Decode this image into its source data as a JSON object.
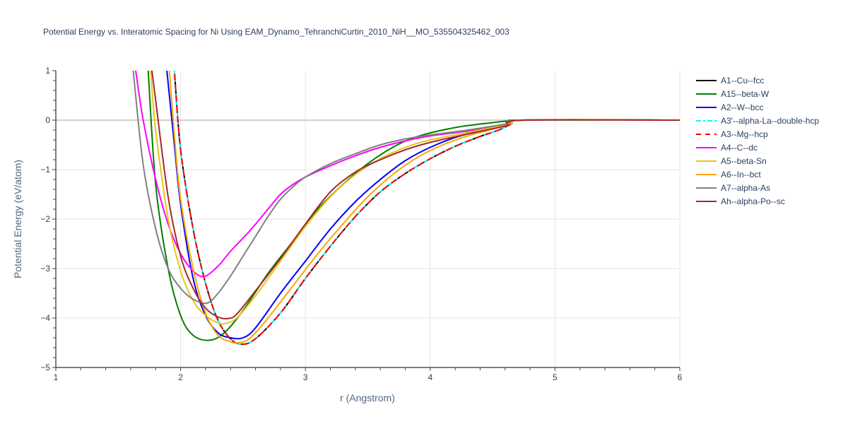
{
  "title": "Potential Energy vs. Interatomic Spacing for Ni Using EAM_Dynamo_TehranchiCurtin_2010_NiH__MO_535504325462_003",
  "chart_data": {
    "type": "line",
    "title": "Potential Energy vs. Interatomic Spacing for Ni Using EAM_Dynamo_TehranchiCurtin_2010_NiH__MO_535504325462_003",
    "xlabel": "r (Angstrom)",
    "ylabel": "Potential Energy (eV/atom)",
    "xlim": [
      1,
      6
    ],
    "ylim": [
      -5,
      1
    ],
    "x_ticks": [
      "1",
      "2",
      "3",
      "4",
      "5",
      "6"
    ],
    "y_ticks": [
      "1",
      "0",
      "−1",
      "−2",
      "−3",
      "−4",
      "−5"
    ],
    "grid": true,
    "legend_position": "right",
    "series": [
      {
        "name": "A1--Cu--fcc",
        "color": "#000000",
        "dash": "solid",
        "x": [
          1.95,
          2.0,
          2.1,
          2.2,
          2.3,
          2.4,
          2.49,
          2.6,
          2.8,
          3.0,
          3.2,
          3.4,
          3.6,
          3.8,
          4.0,
          4.2,
          4.4,
          4.55,
          4.65,
          4.75,
          6.0
        ],
        "y": [
          1.0,
          -0.6,
          -2.2,
          -3.3,
          -4.05,
          -4.42,
          -4.53,
          -4.42,
          -3.9,
          -3.2,
          -2.55,
          -1.95,
          -1.45,
          -1.08,
          -0.78,
          -0.53,
          -0.33,
          -0.2,
          -0.08,
          0.0,
          0.0
        ]
      },
      {
        "name": "A15--beta-W",
        "color": "#008000",
        "dash": "solid",
        "x": [
          1.74,
          1.8,
          1.9,
          2.0,
          2.1,
          2.23,
          2.35,
          2.5,
          2.7,
          2.9,
          3.1,
          3.3,
          3.5,
          3.7,
          3.9,
          4.2,
          4.5,
          4.65,
          4.75,
          6.0
        ],
        "y": [
          1.0,
          -1.3,
          -3.0,
          -3.95,
          -4.35,
          -4.45,
          -4.3,
          -3.85,
          -3.1,
          -2.45,
          -1.8,
          -1.3,
          -0.88,
          -0.55,
          -0.33,
          -0.15,
          -0.05,
          -0.01,
          0.0,
          0.0
        ]
      },
      {
        "name": "A2--W--bcc",
        "color": "#0000ff",
        "dash": "solid",
        "x": [
          1.89,
          1.95,
          2.0,
          2.1,
          2.2,
          2.3,
          2.4,
          2.5,
          2.6,
          2.8,
          3.0,
          3.2,
          3.4,
          3.6,
          3.8,
          4.0,
          4.2,
          4.4,
          4.6,
          4.75,
          6.0
        ],
        "y": [
          1.0,
          -0.5,
          -1.7,
          -3.2,
          -3.95,
          -4.3,
          -4.4,
          -4.4,
          -4.2,
          -3.5,
          -2.85,
          -2.2,
          -1.65,
          -1.2,
          -0.82,
          -0.55,
          -0.35,
          -0.22,
          -0.1,
          0.0,
          0.0
        ]
      },
      {
        "name": "A3'--alpha-La--double-hcp",
        "color": "#00ffff",
        "dash": "dashdot",
        "x": [
          1.95,
          2.0,
          2.1,
          2.2,
          2.3,
          2.4,
          2.49,
          2.6,
          2.8,
          3.0,
          3.2,
          3.4,
          3.6,
          3.8,
          4.0,
          4.2,
          4.4,
          4.55,
          4.65,
          4.75,
          6.0
        ],
        "y": [
          1.0,
          -0.6,
          -2.2,
          -3.3,
          -4.05,
          -4.42,
          -4.53,
          -4.42,
          -3.9,
          -3.2,
          -2.55,
          -1.95,
          -1.45,
          -1.08,
          -0.78,
          -0.53,
          -0.33,
          -0.2,
          -0.08,
          0.0,
          0.0
        ]
      },
      {
        "name": "A3--Mg--hcp",
        "color": "#ff0000",
        "dash": "dash",
        "x": [
          1.95,
          2.0,
          2.1,
          2.2,
          2.3,
          2.4,
          2.49,
          2.6,
          2.8,
          3.0,
          3.2,
          3.4,
          3.6,
          3.8,
          4.0,
          4.2,
          4.4,
          4.55,
          4.65,
          4.75,
          6.0
        ],
        "y": [
          1.0,
          -0.6,
          -2.2,
          -3.3,
          -4.05,
          -4.42,
          -4.53,
          -4.42,
          -3.9,
          -3.2,
          -2.55,
          -1.95,
          -1.45,
          -1.08,
          -0.78,
          -0.53,
          -0.33,
          -0.2,
          -0.08,
          0.0,
          0.0
        ]
      },
      {
        "name": "A4--C--dc",
        "color": "#ff00ff",
        "dash": "solid",
        "x": [
          1.64,
          1.7,
          1.8,
          1.9,
          2.0,
          2.1,
          2.19,
          2.3,
          2.4,
          2.55,
          2.7,
          2.8,
          2.9,
          3.0,
          3.2,
          3.4,
          3.6,
          3.8,
          4.0,
          4.3,
          4.6,
          4.75,
          6.0
        ],
        "y": [
          1.0,
          0.0,
          -1.2,
          -2.1,
          -2.7,
          -3.05,
          -3.16,
          -2.95,
          -2.65,
          -2.25,
          -1.8,
          -1.5,
          -1.3,
          -1.15,
          -0.92,
          -0.72,
          -0.55,
          -0.42,
          -0.32,
          -0.22,
          -0.1,
          0.0,
          0.0
        ]
      },
      {
        "name": "A5--beta-Sn",
        "color": "#e6c619",
        "dash": "solid",
        "x": [
          1.76,
          1.8,
          1.9,
          2.0,
          2.1,
          2.2,
          2.3,
          2.36,
          2.45,
          2.6,
          2.8,
          3.0,
          3.2,
          3.4,
          3.6,
          3.8,
          4.0,
          4.3,
          4.6,
          4.75,
          6.0
        ],
        "y": [
          1.0,
          -0.2,
          -2.0,
          -3.05,
          -3.65,
          -3.95,
          -4.1,
          -4.11,
          -4.0,
          -3.55,
          -2.85,
          -2.15,
          -1.55,
          -1.1,
          -0.78,
          -0.55,
          -0.4,
          -0.25,
          -0.1,
          0.0,
          0.0
        ]
      },
      {
        "name": "A6--In--bct",
        "color": "#ffa500",
        "dash": "solid",
        "x": [
          1.91,
          1.95,
          2.0,
          2.1,
          2.2,
          2.3,
          2.4,
          2.45,
          2.55,
          2.7,
          2.9,
          3.1,
          3.3,
          3.5,
          3.7,
          3.9,
          4.1,
          4.3,
          4.5,
          4.65,
          4.75,
          6.0
        ],
        "y": [
          1.0,
          -0.3,
          -1.6,
          -3.0,
          -3.9,
          -4.35,
          -4.48,
          -4.5,
          -4.42,
          -4.0,
          -3.35,
          -2.7,
          -2.1,
          -1.55,
          -1.1,
          -0.75,
          -0.5,
          -0.32,
          -0.18,
          -0.06,
          0.0,
          0.0
        ]
      },
      {
        "name": "A7--alpha-As",
        "color": "#808080",
        "dash": "solid",
        "x": [
          1.62,
          1.7,
          1.8,
          1.9,
          2.0,
          2.1,
          2.21,
          2.3,
          2.4,
          2.5,
          2.6,
          2.7,
          2.8,
          2.9,
          3.0,
          3.2,
          3.4,
          3.6,
          3.8,
          4.0,
          4.3,
          4.6,
          4.75,
          6.0
        ],
        "y": [
          1.0,
          -0.9,
          -2.2,
          -3.0,
          -3.4,
          -3.62,
          -3.7,
          -3.5,
          -3.15,
          -2.75,
          -2.35,
          -1.95,
          -1.6,
          -1.35,
          -1.15,
          -0.88,
          -0.68,
          -0.5,
          -0.38,
          -0.3,
          -0.2,
          -0.08,
          0.0,
          0.0
        ]
      },
      {
        "name": "Ah--alpha-Po--sc",
        "color": "#a52a2a",
        "dash": "solid",
        "x": [
          1.77,
          1.8,
          1.9,
          2.0,
          2.1,
          2.2,
          2.3,
          2.38,
          2.45,
          2.6,
          2.8,
          3.0,
          3.2,
          3.4,
          3.6,
          3.8,
          4.0,
          4.3,
          4.6,
          4.75,
          6.0
        ],
        "y": [
          1.0,
          0.4,
          -1.55,
          -2.75,
          -3.4,
          -3.8,
          -3.98,
          -4.01,
          -3.92,
          -3.45,
          -2.8,
          -2.1,
          -1.45,
          -1.05,
          -0.8,
          -0.6,
          -0.45,
          -0.28,
          -0.12,
          0.0,
          0.0
        ]
      }
    ]
  }
}
